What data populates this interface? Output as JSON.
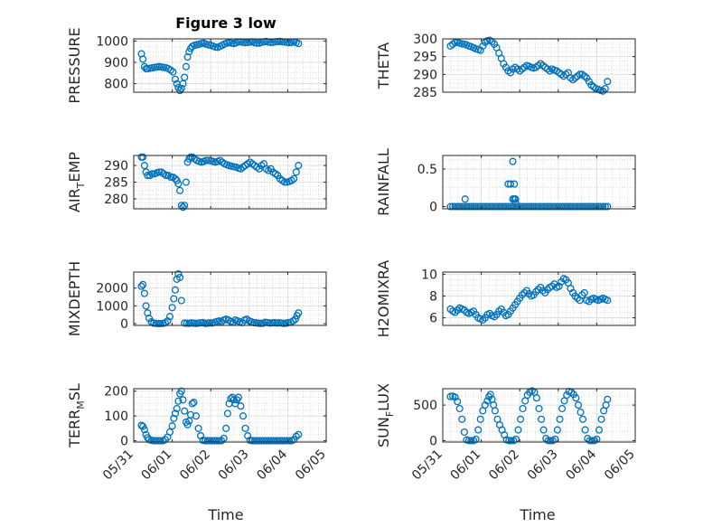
{
  "figure_title": "Figure 3 low",
  "x_label": "Time",
  "x_ticks": [
    "05/31",
    "06/01",
    "06/02",
    "06/03",
    "06/04",
    "06/05"
  ],
  "marker_color": "#0072BD",
  "chart_data": [
    {
      "type": "scatter",
      "name": "PRESSURE",
      "ylabel": "PRESSURE",
      "ylim": [
        760,
        1010
      ],
      "yticks": [
        800,
        900,
        1000
      ],
      "xlim": [
        0,
        5
      ],
      "x": [
        0.2,
        0.24,
        0.28,
        0.32,
        0.36,
        0.42,
        0.48,
        0.54,
        0.6,
        0.66,
        0.72,
        0.78,
        0.84,
        0.9,
        0.96,
        1.02,
        1.08,
        1.12,
        1.16,
        1.2,
        1.24,
        1.28,
        1.32,
        1.36,
        1.4,
        1.44,
        1.48,
        1.52,
        1.58,
        1.64,
        1.7,
        1.76,
        1.82,
        1.88,
        1.94,
        2.0,
        2.06,
        2.12,
        2.18,
        2.24,
        2.3,
        2.36,
        2.42,
        2.48,
        2.54,
        2.6,
        2.66,
        2.72,
        2.78,
        2.84,
        2.9,
        2.96,
        3.02,
        3.08,
        3.14,
        3.2,
        3.26,
        3.32,
        3.38,
        3.44,
        3.5,
        3.56,
        3.62,
        3.68,
        3.74,
        3.8,
        3.86,
        3.92,
        3.98,
        4.04,
        4.1,
        4.16,
        4.22,
        4.28
      ],
      "values": [
        940,
        915,
        880,
        870,
        870,
        872,
        874,
        876,
        878,
        880,
        878,
        876,
        874,
        870,
        864,
        855,
        820,
        800,
        782,
        768,
        778,
        800,
        830,
        880,
        925,
        950,
        965,
        975,
        980,
        982,
        985,
        988,
        990,
        985,
        982,
        980,
        976,
        972,
        970,
        975,
        980,
        986,
        990,
        992,
        990,
        988,
        992,
        995,
        996,
        994,
        992,
        993,
        995,
        996,
        992,
        990,
        990,
        994,
        996,
        998,
        995,
        993,
        994,
        996,
        997,
        998,
        996,
        995,
        994,
        992,
        994,
        995,
        993,
        988
      ]
    },
    {
      "type": "scatter",
      "name": "THETA",
      "ylabel": "THETA",
      "ylim": [
        285,
        300
      ],
      "yticks": [
        285,
        290,
        295,
        300
      ],
      "xlim": [
        0,
        5
      ],
      "x": [
        0.2,
        0.26,
        0.32,
        0.38,
        0.44,
        0.5,
        0.56,
        0.62,
        0.68,
        0.74,
        0.8,
        0.86,
        0.92,
        0.98,
        1.04,
        1.1,
        1.16,
        1.22,
        1.28,
        1.34,
        1.4,
        1.46,
        1.52,
        1.58,
        1.64,
        1.7,
        1.76,
        1.82,
        1.88,
        1.94,
        2.0,
        2.06,
        2.12,
        2.18,
        2.24,
        2.3,
        2.36,
        2.42,
        2.48,
        2.54,
        2.6,
        2.66,
        2.72,
        2.78,
        2.84,
        2.9,
        2.96,
        3.02,
        3.08,
        3.14,
        3.2,
        3.26,
        3.32,
        3.38,
        3.44,
        3.5,
        3.56,
        3.62,
        3.68,
        3.74,
        3.8,
        3.86,
        3.92,
        3.98,
        4.04,
        4.1,
        4.16,
        4.22,
        4.28
      ],
      "values": [
        298,
        298.5,
        299,
        299,
        298.8,
        298.6,
        298.5,
        298.3,
        298,
        297.8,
        297.5,
        297.2,
        297,
        296.8,
        298,
        299,
        299.5,
        299.6,
        299.2,
        298.5,
        297.5,
        296,
        294.5,
        293,
        292,
        291,
        290.5,
        291.5,
        292,
        291.5,
        291,
        291.5,
        292,
        292.5,
        292.3,
        292,
        291.8,
        292,
        292.5,
        293,
        292.5,
        292,
        291.5,
        291,
        291.5,
        291.2,
        291,
        290.5,
        290,
        289.5,
        290,
        290.5,
        289,
        288.5,
        289,
        289.5,
        290,
        290,
        289.5,
        289,
        288,
        287,
        286.5,
        286,
        285.8,
        285.5,
        285.3,
        286,
        288
      ]
    },
    {
      "type": "scatter",
      "name": "AIR_TEMP",
      "ylabel": "AIR_TEMP",
      "ylim": [
        277,
        293
      ],
      "yticks": [
        280,
        285,
        290
      ],
      "xlim": [
        0,
        5
      ],
      "x": [
        0.2,
        0.24,
        0.28,
        0.32,
        0.36,
        0.42,
        0.48,
        0.54,
        0.6,
        0.66,
        0.72,
        0.78,
        0.84,
        0.9,
        0.96,
        1.02,
        1.08,
        1.12,
        1.16,
        1.2,
        1.24,
        1.28,
        1.32,
        1.36,
        1.4,
        1.44,
        1.48,
        1.52,
        1.58,
        1.64,
        1.7,
        1.76,
        1.82,
        1.88,
        1.94,
        2.0,
        2.06,
        2.12,
        2.18,
        2.24,
        2.3,
        2.36,
        2.42,
        2.48,
        2.54,
        2.6,
        2.66,
        2.72,
        2.78,
        2.84,
        2.9,
        2.96,
        3.02,
        3.08,
        3.14,
        3.2,
        3.26,
        3.32,
        3.38,
        3.44,
        3.5,
        3.56,
        3.62,
        3.68,
        3.74,
        3.8,
        3.86,
        3.92,
        3.98,
        4.04,
        4.1,
        4.16,
        4.22,
        4.28
      ],
      "values": [
        292.5,
        292.5,
        290,
        288,
        287,
        287,
        287.5,
        287.5,
        287.8,
        288,
        288,
        287.5,
        287,
        287,
        286.5,
        286.5,
        286,
        285.5,
        284.5,
        282.5,
        278,
        277.5,
        278,
        285,
        291,
        292,
        292.5,
        292.5,
        292,
        291.5,
        291.2,
        291,
        291.2,
        291.5,
        291.5,
        291.4,
        291.2,
        291,
        291.2,
        291.5,
        291,
        290.5,
        290.2,
        290,
        289.8,
        289.6,
        289.5,
        289.2,
        289,
        289.5,
        290,
        290.5,
        291,
        290.5,
        290,
        289.5,
        289,
        290,
        290.5,
        289,
        288.5,
        289,
        288,
        287.5,
        287,
        286,
        285.5,
        285,
        285,
        285.2,
        285.5,
        286,
        288,
        290
      ]
    },
    {
      "type": "scatter",
      "name": "RAINFALL",
      "ylabel": "RAINFALL",
      "ylim": [
        -0.03,
        0.68
      ],
      "yticks": [
        0,
        0.5
      ],
      "xlim": [
        0,
        5
      ],
      "x": [
        0.2,
        0.26,
        0.32,
        0.38,
        0.44,
        0.5,
        0.56,
        0.62,
        0.68,
        0.74,
        0.8,
        0.86,
        0.92,
        0.98,
        1.04,
        1.1,
        1.16,
        1.22,
        1.28,
        1.34,
        1.4,
        1.46,
        1.52,
        1.58,
        1.64,
        1.7,
        1.76,
        1.82,
        1.88,
        1.94,
        2.0,
        2.06,
        2.12,
        2.18,
        2.24,
        2.3,
        2.36,
        2.42,
        2.48,
        2.54,
        2.6,
        2.66,
        2.72,
        2.78,
        2.84,
        2.9,
        2.96,
        3.02,
        3.08,
        3.14,
        3.2,
        3.26,
        3.32,
        3.38,
        3.44,
        3.5,
        3.56,
        3.62,
        3.68,
        3.74,
        3.8,
        3.86,
        3.92,
        3.98,
        4.04,
        4.1,
        4.16,
        4.22,
        4.28,
        0.58,
        1.7,
        1.76,
        1.82,
        1.86,
        1.82,
        1.86,
        1.89,
        1.89
      ],
      "values": [
        0,
        0,
        0,
        0,
        0,
        0,
        0,
        0,
        0,
        0,
        0,
        0,
        0,
        0,
        0,
        0,
        0,
        0,
        0,
        0,
        0,
        0,
        0,
        0,
        0,
        0,
        0,
        0,
        0,
        0,
        0,
        0,
        0,
        0,
        0,
        0,
        0,
        0,
        0,
        0,
        0,
        0,
        0,
        0,
        0,
        0,
        0,
        0,
        0,
        0,
        0,
        0,
        0,
        0,
        0,
        0,
        0,
        0,
        0,
        0,
        0,
        0,
        0,
        0,
        0,
        0,
        0,
        0,
        0,
        0.1,
        0.3,
        0.3,
        0.6,
        0.3,
        0.1,
        0.1,
        0.1,
        0.05
      ]
    },
    {
      "type": "scatter",
      "name": "MIXDEPTH",
      "ylabel": "MIXDEPTH",
      "ylim": [
        -100,
        2900
      ],
      "yticks": [
        0,
        1000,
        2000
      ],
      "xlim": [
        0,
        5
      ],
      "x": [
        0.2,
        0.24,
        0.28,
        0.32,
        0.36,
        0.4,
        0.46,
        0.52,
        0.58,
        0.64,
        0.7,
        0.76,
        0.82,
        0.88,
        0.94,
        1.0,
        1.04,
        1.08,
        1.12,
        1.16,
        1.2,
        1.24,
        1.32,
        1.38,
        1.44,
        1.5,
        1.56,
        1.62,
        1.68,
        1.74,
        1.8,
        1.86,
        1.92,
        1.98,
        2.04,
        2.1,
        2.16,
        2.22,
        2.28,
        2.34,
        2.4,
        2.46,
        2.52,
        2.58,
        2.64,
        2.7,
        2.76,
        2.82,
        2.88,
        2.94,
        3.0,
        3.06,
        3.12,
        3.18,
        3.24,
        3.3,
        3.36,
        3.42,
        3.48,
        3.54,
        3.6,
        3.66,
        3.72,
        3.78,
        3.84,
        3.9,
        3.96,
        4.02,
        4.08,
        4.14,
        4.2,
        4.24,
        4.28
      ],
      "values": [
        2100,
        2200,
        1700,
        1000,
        600,
        300,
        100,
        20,
        10,
        5,
        5,
        10,
        50,
        150,
        400,
        900,
        1400,
        1900,
        2500,
        2800,
        2600,
        1300,
        30,
        20,
        10,
        40,
        20,
        10,
        30,
        40,
        60,
        10,
        20,
        40,
        30,
        80,
        120,
        150,
        100,
        200,
        250,
        200,
        120,
        80,
        200,
        150,
        100,
        60,
        200,
        250,
        150,
        100,
        60,
        40,
        20,
        10,
        20,
        80,
        60,
        30,
        40,
        60,
        30,
        50,
        30,
        10,
        20,
        60,
        80,
        150,
        250,
        450,
        600
      ]
    },
    {
      "type": "scatter",
      "name": "H2OMIXRA",
      "ylabel": "H2OMIXRA",
      "ylim": [
        5.3,
        10.2
      ],
      "yticks": [
        6,
        8,
        10
      ],
      "xlim": [
        0,
        5
      ],
      "x": [
        0.2,
        0.26,
        0.32,
        0.38,
        0.44,
        0.5,
        0.56,
        0.62,
        0.68,
        0.74,
        0.8,
        0.86,
        0.92,
        0.98,
        1.04,
        1.1,
        1.16,
        1.22,
        1.28,
        1.34,
        1.4,
        1.46,
        1.52,
        1.58,
        1.64,
        1.7,
        1.76,
        1.82,
        1.88,
        1.94,
        2.0,
        2.06,
        2.12,
        2.18,
        2.24,
        2.3,
        2.36,
        2.42,
        2.48,
        2.54,
        2.6,
        2.66,
        2.72,
        2.78,
        2.84,
        2.9,
        2.96,
        3.02,
        3.08,
        3.14,
        3.2,
        3.26,
        3.32,
        3.38,
        3.44,
        3.5,
        3.56,
        3.62,
        3.68,
        3.74,
        3.8,
        3.86,
        3.92,
        3.98,
        4.04,
        4.1,
        4.16,
        4.22,
        4.28
      ],
      "values": [
        6.8,
        6.6,
        6.5,
        6.7,
        6.9,
        6.8,
        6.7,
        6.5,
        6.4,
        6.5,
        6.6,
        6.3,
        6.0,
        5.9,
        5.8,
        6.0,
        6.3,
        6.4,
        6.2,
        6.1,
        6.3,
        6.6,
        6.8,
        6.5,
        6.2,
        6.3,
        6.6,
        6.9,
        7.2,
        7.5,
        7.8,
        8.1,
        8.3,
        8.5,
        8.2,
        8.0,
        8.1,
        8.4,
        8.6,
        8.8,
        8.5,
        8.3,
        8.6,
        8.8,
        8.9,
        9.1,
        8.8,
        8.9,
        9.3,
        9.6,
        9.5,
        9.2,
        8.7,
        8.3,
        8.0,
        7.8,
        7.6,
        8.1,
        8.3,
        7.6,
        7.5,
        7.7,
        7.8,
        7.7,
        7.6,
        7.7,
        7.8,
        7.7,
        7.6
      ]
    },
    {
      "type": "scatter",
      "name": "TERR_MSL",
      "ylabel": "TERR_MSL",
      "ylim": [
        -5,
        210
      ],
      "yticks": [
        0,
        100,
        200
      ],
      "xlim": [
        0,
        5
      ],
      "x": [
        0.2,
        0.24,
        0.28,
        0.32,
        0.36,
        0.4,
        0.46,
        0.52,
        0.58,
        0.64,
        0.7,
        0.76,
        0.82,
        0.88,
        0.94,
        1.0,
        1.04,
        1.08,
        1.12,
        1.16,
        1.2,
        1.24,
        1.28,
        1.32,
        1.36,
        1.4,
        1.44,
        1.48,
        1.52,
        1.56,
        1.62,
        1.68,
        1.74,
        1.8,
        1.86,
        1.92,
        1.98,
        2.04,
        2.1,
        2.16,
        2.22,
        2.28,
        2.34,
        2.4,
        2.44,
        2.48,
        2.52,
        2.56,
        2.6,
        2.64,
        2.68,
        2.72,
        2.78,
        2.84,
        2.9,
        2.96,
        3.02,
        3.08,
        3.14,
        3.2,
        3.26,
        3.32,
        3.38,
        3.44,
        3.5,
        3.56,
        3.62,
        3.68,
        3.74,
        3.8,
        3.86,
        3.92,
        3.98,
        4.04,
        4.1,
        4.16,
        4.22,
        4.28
      ],
      "values": [
        62,
        58,
        45,
        25,
        12,
        5,
        2,
        0,
        0,
        0,
        0,
        0,
        5,
        15,
        35,
        60,
        90,
        110,
        130,
        160,
        190,
        200,
        165,
        120,
        75,
        65,
        80,
        105,
        150,
        155,
        100,
        50,
        20,
        2,
        0,
        0,
        0,
        0,
        0,
        0,
        0,
        0,
        10,
        50,
        110,
        150,
        170,
        175,
        165,
        150,
        165,
        175,
        140,
        100,
        50,
        20,
        2,
        0,
        0,
        0,
        0,
        0,
        0,
        0,
        0,
        0,
        0,
        0,
        0,
        0,
        0,
        0,
        0,
        0,
        0,
        5,
        18,
        25
      ]
    },
    {
      "type": "scatter",
      "name": "SUN_FLUX",
      "ylabel": "SUN_FLUX",
      "ylim": [
        -20,
        730
      ],
      "yticks": [
        0,
        500
      ],
      "xlim": [
        0,
        5
      ],
      "x": [
        0.2,
        0.26,
        0.32,
        0.38,
        0.44,
        0.5,
        0.56,
        0.62,
        0.68,
        0.74,
        0.8,
        0.86,
        0.92,
        0.98,
        1.04,
        1.1,
        1.16,
        1.2,
        1.24,
        1.28,
        1.32,
        1.36,
        1.42,
        1.48,
        1.54,
        1.6,
        1.66,
        1.72,
        1.78,
        1.84,
        1.9,
        1.96,
        2.02,
        2.08,
        2.14,
        2.2,
        2.26,
        2.32,
        2.38,
        2.44,
        2.5,
        2.56,
        2.62,
        2.68,
        2.74,
        2.8,
        2.86,
        2.92,
        2.98,
        3.04,
        3.1,
        3.16,
        3.22,
        3.28,
        3.34,
        3.4,
        3.46,
        3.52,
        3.58,
        3.64,
        3.7,
        3.76,
        3.82,
        3.88,
        3.94,
        4.0,
        4.06,
        4.12,
        4.18,
        4.24,
        4.28
      ],
      "values": [
        620,
        625,
        610,
        550,
        450,
        300,
        120,
        10,
        0,
        0,
        0,
        20,
        150,
        300,
        420,
        500,
        560,
        620,
        650,
        580,
        500,
        420,
        300,
        220,
        150,
        80,
        10,
        0,
        0,
        0,
        20,
        150,
        300,
        450,
        560,
        640,
        680,
        700,
        680,
        600,
        450,
        300,
        150,
        30,
        0,
        0,
        0,
        20,
        150,
        300,
        450,
        560,
        640,
        690,
        680,
        650,
        600,
        500,
        400,
        300,
        150,
        30,
        0,
        0,
        0,
        20,
        150,
        300,
        420,
        500,
        580
      ]
    }
  ]
}
